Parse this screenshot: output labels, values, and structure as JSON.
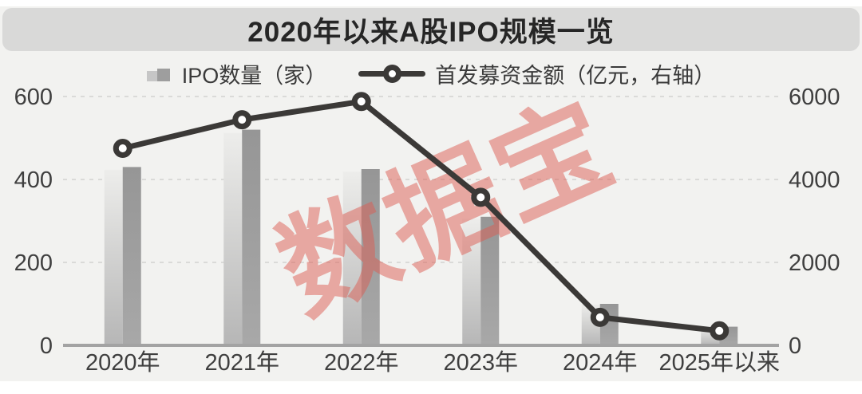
{
  "title": {
    "text": "2020年以来A股IPO规模一览"
  },
  "legend": {
    "items": [
      {
        "label": "IPO数量（家）",
        "type": "bar"
      },
      {
        "label": "首发募资金额（亿元，右轴）",
        "type": "line"
      }
    ]
  },
  "watermark": {
    "text": "数据宝",
    "color": "rgba(219,92,82,0.5)",
    "rotation_deg": -24
  },
  "chart_data": {
    "type": "bar+line combo",
    "title": "2020年以来A股IPO规模一览",
    "categories": [
      "2020年",
      "2021年",
      "2022年",
      "2023年",
      "2024年",
      "2025年以来"
    ],
    "series": [
      {
        "name": "IPO数量（家）",
        "type": "bar",
        "axis": "left",
        "values": [
          430,
          520,
          425,
          310,
          100,
          45
        ]
      },
      {
        "name": "首发募资金额（亿元，右轴）",
        "type": "line",
        "axis": "right",
        "values": [
          4750,
          5440,
          5880,
          3570,
          675,
          350
        ]
      }
    ],
    "left_axis": {
      "label": "IPO数量（家）",
      "ticks": [
        0,
        200,
        400,
        600
      ],
      "range": [
        0,
        600
      ]
    },
    "right_axis": {
      "label": "首发募资金额（亿元）",
      "ticks": [
        0,
        2000,
        4000,
        6000
      ],
      "range": [
        0,
        6000
      ]
    },
    "grid": "horizontal dashed gridlines",
    "legend_position": "top center"
  },
  "colors": {
    "page_background": "#f2f2f0",
    "title_band": "#d9d9d8",
    "title_text": "#262626",
    "bar_light_top": "#ededeb",
    "bar_light_bottom": "#b6b6b6",
    "bar_dark_top": "#969696",
    "bar_dark_bottom": "#a8a8a8",
    "line": "#3b3937",
    "gridline": "#d2d2d0",
    "axis_line": "#a3a3a3",
    "tick_text": "#3f3f3f"
  }
}
